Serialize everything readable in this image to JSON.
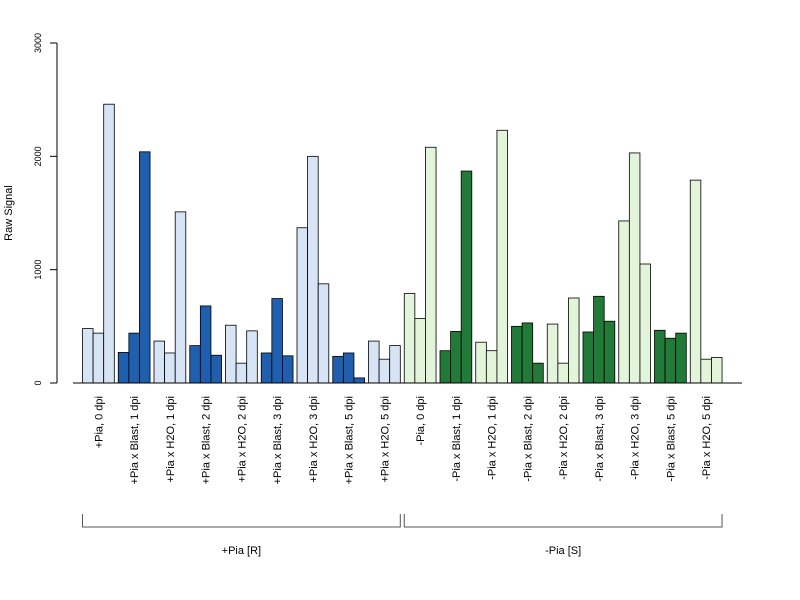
{
  "chart_data": {
    "type": "bar",
    "ylabel": "Raw Signal",
    "xlabel": "",
    "ylim": [
      0,
      3000
    ],
    "yticks": [
      0,
      1000,
      2000,
      3000
    ],
    "grid": false,
    "legend": "none",
    "colors": {
      "light_blue": "#d6e4f5",
      "dark_blue": "#1f5fad",
      "light_green": "#e2f4da",
      "dark_green": "#217a37",
      "edge": "#000000"
    },
    "categories": [
      "+Pia, 0 dpi",
      "+Pia x Blast, 1 dpi",
      "+Pia x H2O, 1 dpi",
      "+Pia x Blast, 2 dpi",
      "+Pia x H2O, 2 dpi",
      "+Pia x Blast, 3 dpi",
      "+Pia x H2O, 3 dpi",
      "+Pia x Blast, 5 dpi",
      "+Pia x H2O, 5 dpi",
      "-Pia, 0 dpi",
      "-Pia x Blast, 1 dpi",
      "-Pia x H2O, 1 dpi",
      "-Pia x Blast, 2 dpi",
      "-Pia x H2O, 2 dpi",
      "-Pia x Blast, 3 dpi",
      "-Pia x H2O, 3 dpi",
      "-Pia x Blast, 5 dpi",
      "-Pia x H2O, 5 dpi"
    ],
    "category_colors": [
      "light_blue",
      "dark_blue",
      "light_blue",
      "dark_blue",
      "light_blue",
      "dark_blue",
      "light_blue",
      "dark_blue",
      "light_blue",
      "light_green",
      "dark_green",
      "light_green",
      "dark_green",
      "light_green",
      "dark_green",
      "light_green",
      "dark_green",
      "light_green"
    ],
    "values": [
      [
        480,
        440,
        2460
      ],
      [
        270,
        440,
        2040
      ],
      [
        370,
        265,
        1510
      ],
      [
        330,
        680,
        245
      ],
      [
        510,
        175,
        460
      ],
      [
        265,
        745,
        240
      ],
      [
        1370,
        2000,
        875
      ],
      [
        235,
        265,
        45
      ],
      [
        370,
        210,
        330
      ],
      [
        790,
        570,
        2080
      ],
      [
        285,
        455,
        1870
      ],
      [
        360,
        285,
        2230
      ],
      [
        500,
        530,
        175
      ],
      [
        520,
        175,
        750
      ],
      [
        450,
        765,
        545
      ],
      [
        1430,
        2030,
        1050
      ],
      [
        465,
        395,
        440
      ],
      [
        1790,
        210,
        225
      ]
    ],
    "groups": [
      {
        "label": "+Pia [R]",
        "from": 0,
        "to": 8
      },
      {
        "label": "-Pia [S]",
        "from": 9,
        "to": 17
      }
    ]
  }
}
